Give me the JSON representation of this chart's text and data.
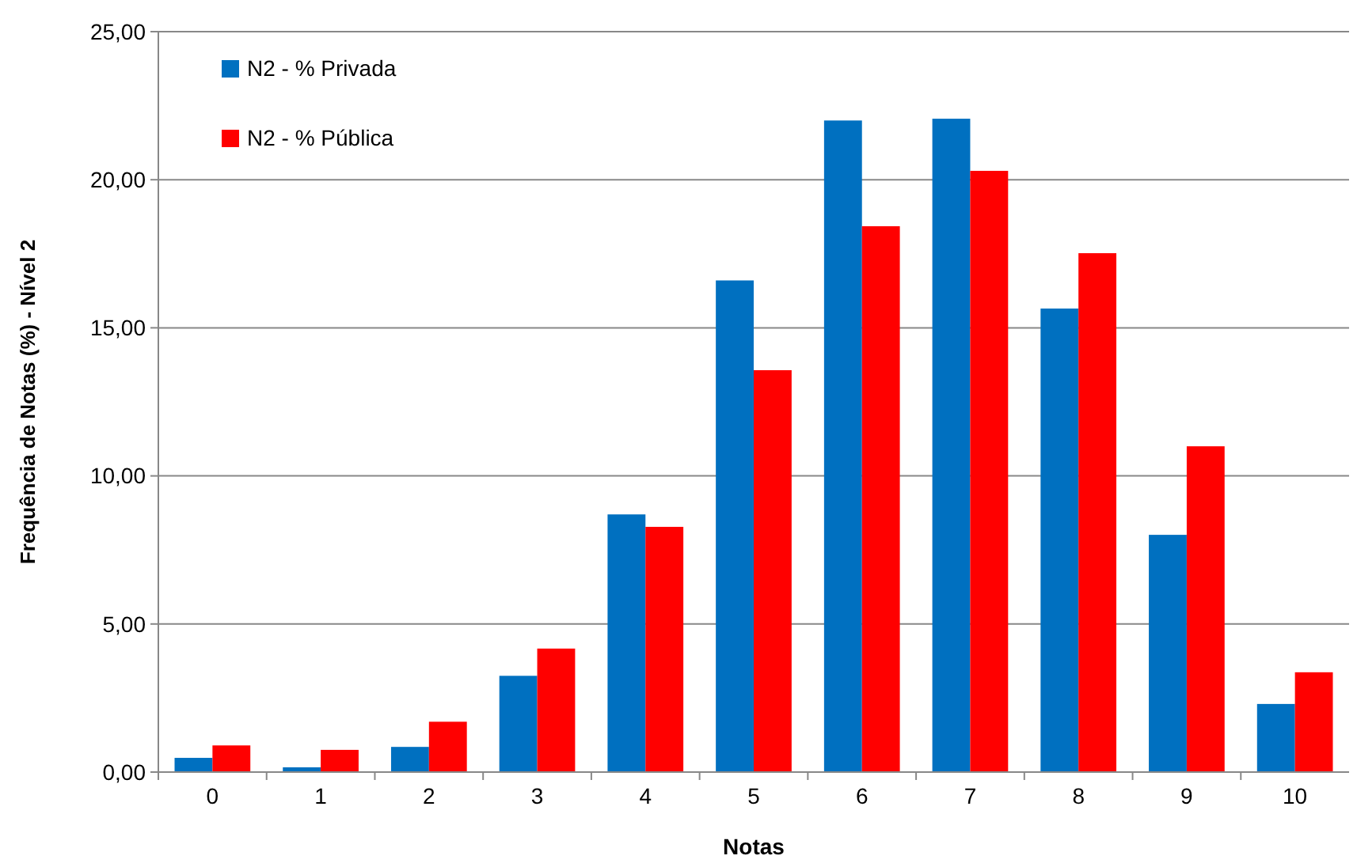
{
  "chart_data": {
    "type": "bar",
    "xlabel": "Notas",
    "ylabel": "Frequência de Notas (%) - Nível 2",
    "categories": [
      "0",
      "1",
      "2",
      "3",
      "4",
      "5",
      "6",
      "7",
      "8",
      "9",
      "10"
    ],
    "series": [
      {
        "name": "N2 - % Privada",
        "color": "#0070c0",
        "values": [
          0.48,
          0.16,
          0.85,
          3.25,
          8.7,
          16.6,
          22.0,
          22.06,
          15.65,
          8.01,
          2.3
        ]
      },
      {
        "name": "N2 - % Pública",
        "color": "#ff0000",
        "values": [
          0.9,
          0.75,
          1.7,
          4.17,
          8.28,
          13.57,
          18.43,
          20.3,
          17.52,
          11.0,
          3.37
        ]
      }
    ],
    "ylim": [
      0,
      25
    ],
    "yticks": [
      {
        "value": 0,
        "label": "0,00"
      },
      {
        "value": 5,
        "label": "5,00"
      },
      {
        "value": 10,
        "label": "10,00"
      },
      {
        "value": 15,
        "label": "15,00"
      },
      {
        "value": 20,
        "label": "20,00"
      },
      {
        "value": 25,
        "label": "25,00"
      }
    ],
    "grid": "y",
    "legend": "top left"
  }
}
